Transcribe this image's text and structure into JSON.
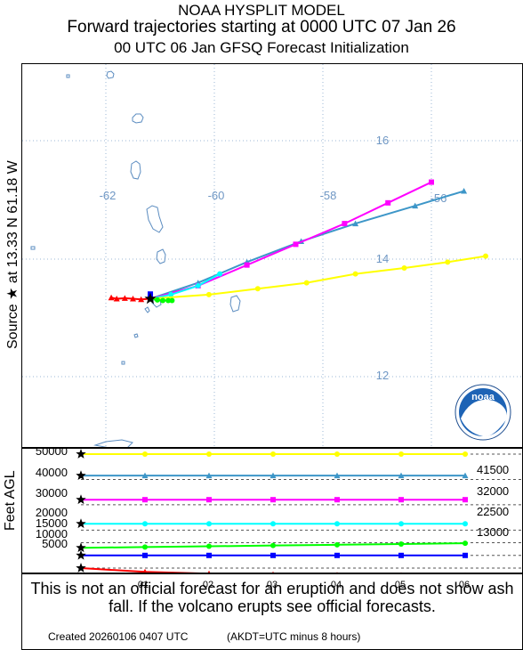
{
  "header": {
    "line1": "NOAA HYSPLIT MODEL",
    "line2": "Forward trajectories starting at 0000 UTC 07 Jan 26",
    "line3": "00 UTC 06 Jan    GFSQ  Forecast Initialization"
  },
  "side_label": "Source ★  at    13.33 N   61.18 W",
  "source": {
    "lat": 13.33,
    "lon": -61.18
  },
  "map": {
    "lon_labels": [
      "-62",
      "-60",
      "-58",
      "-56"
    ],
    "lat_labels": [
      "16",
      "14",
      "12"
    ],
    "logo_text": "noaa"
  },
  "trajectories": [
    {
      "name": "41500",
      "color": "#3d96c8",
      "marker": "triangle",
      "points": [
        [
          -61.18,
          13.33
        ],
        [
          -60.3,
          13.6
        ],
        [
          -59.4,
          13.95
        ],
        [
          -58.4,
          14.3
        ],
        [
          -57.4,
          14.6
        ],
        [
          -56.3,
          14.9
        ],
        [
          -55.4,
          15.15
        ]
      ]
    },
    {
      "name": "32000",
      "color": "#ff00ff",
      "marker": "square",
      "points": [
        [
          -61.18,
          13.33
        ],
        [
          -60.3,
          13.55
        ],
        [
          -59.4,
          13.9
        ],
        [
          -58.5,
          14.25
        ],
        [
          -57.6,
          14.6
        ],
        [
          -56.8,
          14.95
        ],
        [
          -56.0,
          15.3
        ]
      ]
    },
    {
      "name": "22500",
      "color": "#00ffff",
      "marker": "circle",
      "points": [
        [
          -61.18,
          13.33
        ],
        [
          -60.8,
          13.4
        ],
        [
          -60.3,
          13.55
        ],
        [
          -59.9,
          13.75
        ]
      ]
    },
    {
      "name": "50000",
      "color": "#ffff00",
      "marker": "circle",
      "points": [
        [
          -61.18,
          13.33
        ],
        [
          -60.1,
          13.4
        ],
        [
          -59.2,
          13.5
        ],
        [
          -58.3,
          13.6
        ],
        [
          -57.4,
          13.75
        ],
        [
          -56.5,
          13.85
        ],
        [
          -55.7,
          13.95
        ],
        [
          -55.0,
          14.05
        ]
      ]
    },
    {
      "name": "13000",
      "color": "#00ff00",
      "marker": "circle",
      "points": [
        [
          -61.18,
          13.33
        ],
        [
          -61.05,
          13.31
        ],
        [
          -60.95,
          13.3
        ],
        [
          -60.85,
          13.3
        ],
        [
          -60.78,
          13.3
        ]
      ]
    },
    {
      "name": "10000",
      "color": "#0000ff",
      "marker": "square",
      "points": [
        [
          -61.18,
          13.33
        ],
        [
          -61.18,
          13.36
        ],
        [
          -61.18,
          13.39
        ],
        [
          -61.18,
          13.41
        ]
      ]
    },
    {
      "name": "5000",
      "color": "#ff0000",
      "marker": "triangle",
      "points": [
        [
          -61.18,
          13.33
        ],
        [
          -61.35,
          13.32
        ],
        [
          -61.5,
          13.33
        ],
        [
          -61.65,
          13.34
        ],
        [
          -61.8,
          13.33
        ],
        [
          -61.9,
          13.35
        ]
      ]
    }
  ],
  "altitude_panel": {
    "ylabel": "Feet AGL",
    "tick_labels": [
      "50000",
      "40000",
      "30000",
      "20000",
      "15000",
      "10000",
      "5000"
    ],
    "time_labels": [
      "01",
      "02",
      "03",
      "04",
      "05",
      "06"
    ],
    "right_labels": [
      "41500",
      "32000",
      "22500",
      "13000"
    ],
    "series": [
      {
        "name": "50000",
        "color": "#ffff00",
        "values": [
          50000,
          50000,
          50000,
          50000,
          50000,
          50000,
          50000
        ]
      },
      {
        "name": "41500",
        "color": "#3d96c8",
        "values": [
          41500,
          41500,
          41500,
          41500,
          41500,
          41500,
          41500
        ]
      },
      {
        "name": "32000",
        "color": "#ff00ff",
        "values": [
          32000,
          32000,
          32000,
          32000,
          32000,
          32000,
          32000
        ]
      },
      {
        "name": "22500",
        "color": "#00ffff",
        "values": [
          22500,
          22500,
          22500,
          22500,
          22500,
          22500,
          22500
        ]
      },
      {
        "name": "13000",
        "color": "#00ff00",
        "values": [
          13000,
          13300,
          13600,
          13900,
          14200,
          14500,
          14800
        ]
      },
      {
        "name": "10000",
        "color": "#0000ff",
        "values": [
          10000,
          10000,
          10000,
          10000,
          10000,
          10000,
          10000
        ]
      },
      {
        "name": "5000",
        "color": "#ff0000",
        "values": [
          5000,
          3500,
          2800,
          2500,
          2300,
          2200,
          2100
        ]
      }
    ]
  },
  "note": {
    "text": "This is not an official forecast for an eruption and does not show ash fall. If the volcano erupts see official forecasts.",
    "created": "Created 20260106 0407 UTC",
    "akdt": "(AKDT=UTC minus 8 hours)"
  }
}
